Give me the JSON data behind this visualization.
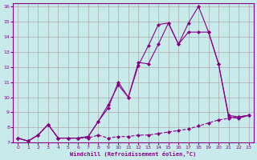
{
  "xlabel": "Windchill (Refroidissement éolien,°C)",
  "bg_color": "#c8eaea",
  "line_color": "#880088",
  "grid_color": "#aaaaaa",
  "xlim": [
    -0.5,
    23.5
  ],
  "ylim": [
    7,
    16.2
  ],
  "yticks": [
    7,
    8,
    9,
    10,
    11,
    12,
    13,
    14,
    15,
    16
  ],
  "xticks": [
    0,
    1,
    2,
    3,
    4,
    5,
    6,
    7,
    8,
    9,
    10,
    11,
    12,
    13,
    14,
    15,
    16,
    17,
    18,
    19,
    20,
    21,
    22,
    23
  ],
  "line1_x": [
    0,
    1,
    2,
    3,
    4,
    5,
    6,
    7,
    8,
    9,
    10,
    11,
    12,
    13,
    14,
    15,
    16,
    17,
    18,
    19,
    20,
    21,
    22,
    23
  ],
  "line1_y": [
    7.3,
    7.1,
    7.5,
    8.2,
    7.3,
    7.3,
    7.3,
    7.3,
    7.5,
    7.3,
    7.4,
    7.4,
    7.5,
    7.5,
    7.6,
    7.7,
    7.8,
    7.9,
    8.1,
    8.3,
    8.5,
    8.6,
    8.7,
    8.8
  ],
  "line2_x": [
    0,
    1,
    2,
    3,
    4,
    5,
    6,
    7,
    8,
    9,
    10,
    11,
    12,
    13,
    14,
    15,
    16,
    17,
    18,
    19,
    20,
    21,
    22,
    23
  ],
  "line2_y": [
    7.3,
    7.1,
    7.5,
    8.2,
    7.3,
    7.3,
    7.3,
    7.4,
    8.4,
    9.3,
    11.0,
    10.0,
    12.3,
    12.2,
    13.5,
    14.9,
    13.5,
    14.9,
    16.0,
    14.3,
    12.2,
    8.8,
    8.7,
    8.8
  ],
  "line3_x": [
    0,
    1,
    2,
    3,
    4,
    5,
    6,
    7,
    8,
    9,
    10,
    11,
    12,
    13,
    14,
    15,
    16,
    17,
    18,
    19,
    20,
    21,
    22,
    23
  ],
  "line3_y": [
    7.3,
    7.1,
    7.5,
    8.2,
    7.3,
    7.3,
    7.3,
    7.4,
    8.4,
    9.5,
    10.8,
    10.0,
    12.1,
    13.4,
    14.8,
    14.9,
    13.5,
    14.3,
    14.3,
    14.3,
    12.2,
    8.7,
    8.6,
    8.8
  ]
}
